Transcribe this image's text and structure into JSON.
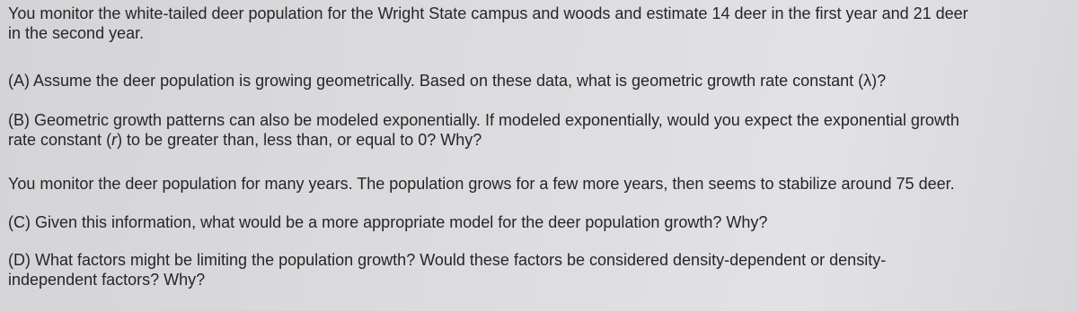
{
  "paragraphs": [
    {
      "lines": [
        [
          "You monitor the white-tailed deer population for the Wright State campus and woods and estimate 14 deer in the first year and 21 deer"
        ],
        [
          "in the second year."
        ]
      ]
    },
    {
      "lines": [
        [
          "(A) Assume the deer population is growing geometrically. Based on these data, what is geometric growth rate constant (λ)?"
        ]
      ]
    },
    {
      "lines": [
        [
          "(B) Geometric growth patterns can also be modeled exponentially. If modeled exponentially, would you expect the exponential growth"
        ],
        [
          "rate constant (",
          {
            "text": "r",
            "italic": true
          },
          ") to be greater than, less than, or equal to 0? Why?"
        ]
      ]
    },
    {
      "lines": [
        [
          "You monitor the deer population for many years. The population grows for a few more years, then seems to stabilize around 75 deer."
        ]
      ]
    },
    {
      "lines": [
        [
          "(C) Given this information, what would be a more appropriate model for the deer population growth? Why?"
        ]
      ]
    },
    {
      "lines": [
        [
          "(D) What factors might be limiting the population growth? Would these factors be considered density-dependent or density-"
        ],
        [
          "independent factors? Why?"
        ]
      ]
    }
  ]
}
